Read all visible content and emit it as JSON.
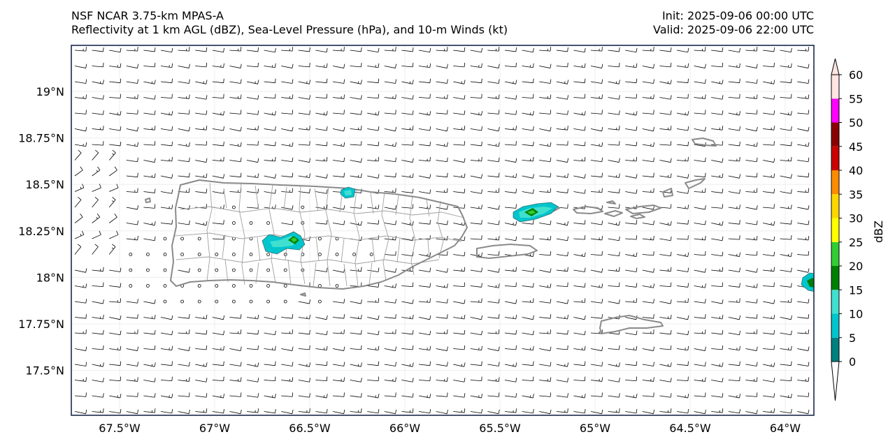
{
  "header": {
    "model_title": "NSF NCAR 3.75-km MPAS-A",
    "field_title": "Reflectivity at 1 km AGL (dBZ), Sea-Level Pressure (hPa), and 10-m Winds (kt)",
    "init_time": "Init: 2025-09-06 00:00 UTC",
    "valid_time": "Valid: 2025-09-06 22:00 UTC"
  },
  "map": {
    "lat_ticks": [
      "19°N",
      "18.75°N",
      "18.5°N",
      "18.25°N",
      "18°N",
      "17.75°N",
      "17.5°N"
    ],
    "lon_ticks": [
      "67.5°W",
      "67°W",
      "66.5°W",
      "66°W",
      "65.5°W",
      "65°W",
      "64.5°W",
      "64°W"
    ],
    "lat_values": [
      19.0,
      18.75,
      18.5,
      18.25,
      18.0,
      17.75,
      17.5
    ],
    "lon_values": [
      -67.5,
      -67.0,
      -66.5,
      -66.0,
      -65.5,
      -65.0,
      -64.5,
      -64.0
    ],
    "coast_color": "#8a8a8a",
    "regions": [
      "Puerto Rico",
      "Vieques",
      "St. Thomas",
      "St. John",
      "Tortola",
      "Anegada",
      "St. Croix",
      "Culebra"
    ]
  },
  "colorbar": {
    "label": "dBZ",
    "ticks": [
      "0",
      "5",
      "10",
      "15",
      "20",
      "25",
      "30",
      "35",
      "40",
      "45",
      "50",
      "55",
      "60"
    ],
    "colors": [
      "#008080",
      "#00c5cd",
      "#40e0d0",
      "#008000",
      "#32cd32",
      "#ffff00",
      "#ffd700",
      "#ff8c00",
      "#cc0000",
      "#8b0000",
      "#ff00ff",
      "#ffe4e1"
    ]
  }
}
